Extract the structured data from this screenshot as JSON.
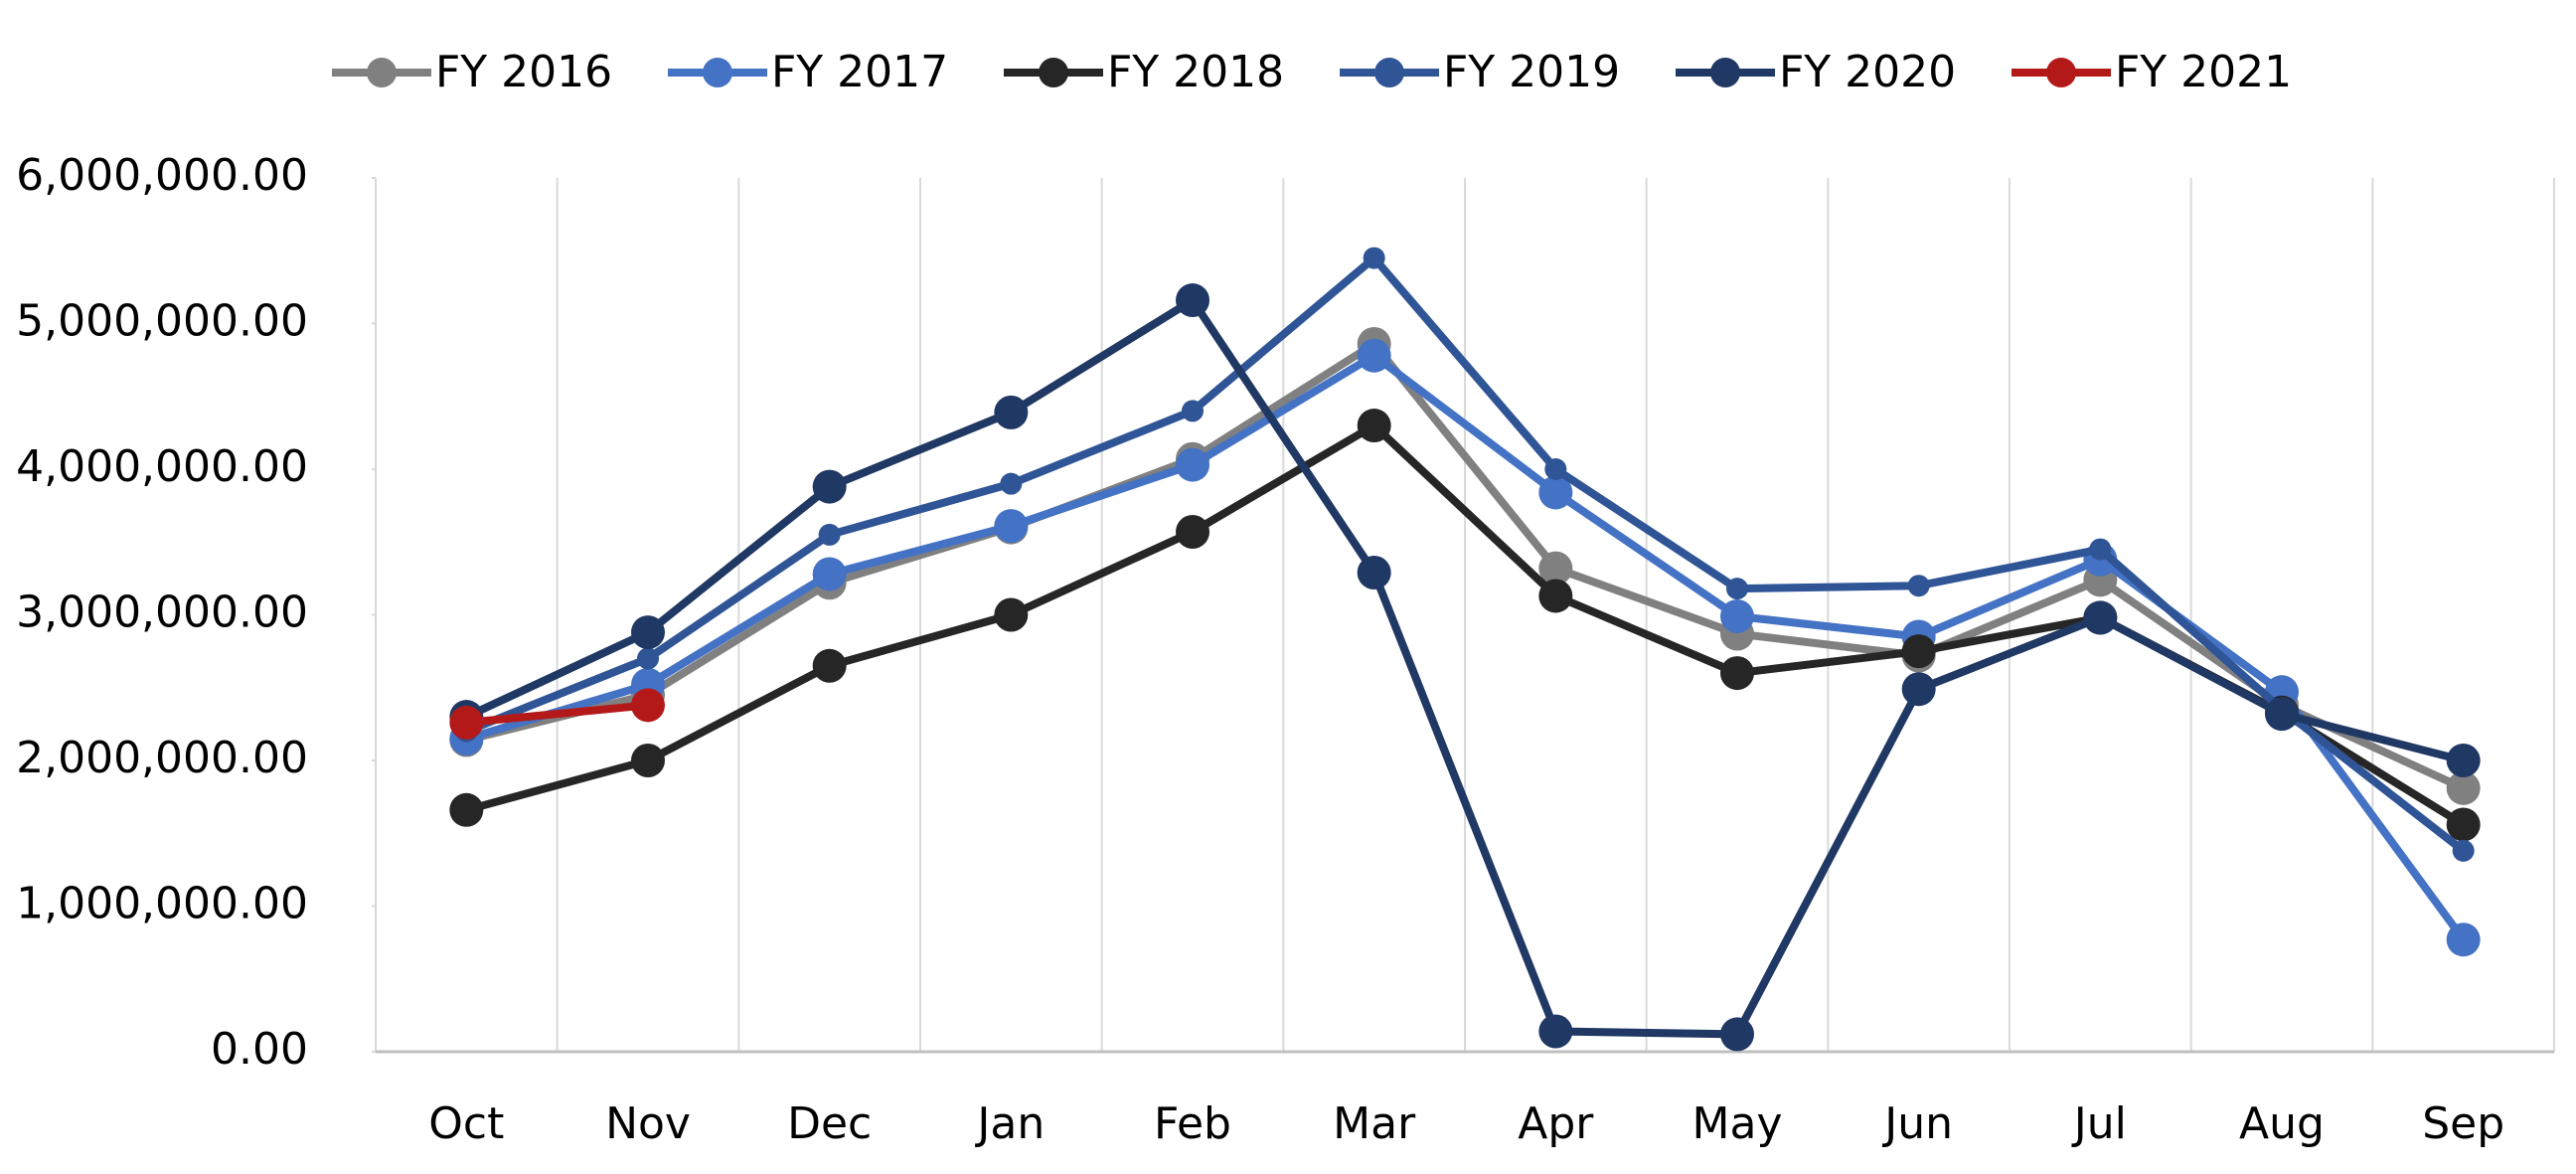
{
  "chart_data": {
    "type": "line",
    "categories": [
      "Oct",
      "Nov",
      "Dec",
      "Jan",
      "Feb",
      "Mar",
      "Apr",
      "May",
      "Jun",
      "Jul",
      "Aug",
      "Sep"
    ],
    "series": [
      {
        "name": "FY 2016",
        "color": "#808080",
        "values": [
          2140000,
          2450000,
          3220000,
          3600000,
          4070000,
          4860000,
          3320000,
          2870000,
          2720000,
          3240000,
          2380000,
          1810000
        ]
      },
      {
        "name": "FY 2017",
        "color": "#4472c4",
        "values": [
          2150000,
          2520000,
          3280000,
          3610000,
          4030000,
          4780000,
          3840000,
          2990000,
          2850000,
          3380000,
          2470000,
          770000
        ]
      },
      {
        "name": "FY 2018",
        "color": "#262626",
        "values": [
          1660000,
          2000000,
          2650000,
          3000000,
          3570000,
          4300000,
          3130000,
          2600000,
          2750000,
          2980000,
          2330000,
          1560000
        ]
      },
      {
        "name": "FY 2019",
        "color": "#2f5597",
        "values": [
          2200000,
          2700000,
          3550000,
          3900000,
          4400000,
          5450000,
          4000000,
          3180000,
          3200000,
          3450000,
          2350000,
          1380000
        ]
      },
      {
        "name": "FY 2020",
        "color": "#203864",
        "values": [
          2300000,
          2880000,
          3880000,
          4390000,
          5160000,
          3290000,
          140000,
          120000,
          2490000,
          2980000,
          2320000,
          2000000
        ]
      },
      {
        "name": "FY 2021",
        "color": "#b4191a",
        "values": [
          2260000,
          2380000,
          null,
          null,
          null,
          null,
          null,
          null,
          null,
          null,
          null,
          null
        ]
      }
    ],
    "ylim": [
      0,
      6000000
    ],
    "yticks": [
      {
        "value": 0,
        "label": "0.00"
      },
      {
        "value": 1000000,
        "label": "1,000,000.00"
      },
      {
        "value": 2000000,
        "label": "2,000,000.00"
      },
      {
        "value": 3000000,
        "label": "3,000,000.00"
      },
      {
        "value": 4000000,
        "label": "4,000,000.00"
      },
      {
        "value": 5000000,
        "label": "5,000,000.00"
      },
      {
        "value": 6000000,
        "label": "6,000,000.00"
      }
    ],
    "legend": "top"
  }
}
